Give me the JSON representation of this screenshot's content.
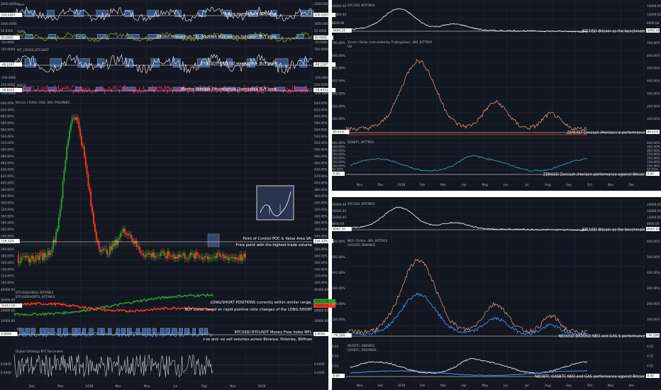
{
  "colors": {
    "bg": "#131722",
    "grid": "#2a2e39",
    "white": "#ffffff",
    "up": "#26a69a",
    "green": "#2ca02c",
    "red": "#ff3b1f",
    "blue": "#4f8fe0",
    "teal": "#3fa7b5",
    "pink": "#ff2a6d",
    "salmon": "#f0a080",
    "box": "#4a6a9a"
  },
  "left": {
    "panels": [
      {
        "id": "mom",
        "title": "Mom",
        "ticks": [
          "2000.0000",
          "1000.0000"
        ],
        "value": "100.0267",
        "annotation": "Positive momentum BUY zone"
      },
      {
        "id": "sqz",
        "title": "SQMI",
        "ticks": [
          "50.0000",
          "0.0000",
          "-50.0000"
        ],
        "value": "50.0000",
        "annotation": "Bitcoin momentum TSI -Squeeze momentum Indicator- BUY zone"
      },
      {
        "id": "wt",
        "title": "WT_CROSS_BTCUSDT",
        "ticks": [
          "100.0000",
          "0.0000",
          "-100.0000"
        ],
        "value": "-48.2247",
        "annotation": "BTCUSDT -BTCUSD wave cross- BUY zone"
      },
      {
        "id": "macd",
        "title": "MACD",
        "ticks": [
          "250.0000",
          "0.0000",
          "-250.0000"
        ],
        "value": "-18.6533",
        "annotation": "Moving Average Convergence Divergence BUY zone"
      }
    ],
    "main": {
      "title": "Bitcoin / Tether USD, 360, POLONIEX",
      "pct_ticks": [
        "640.00%",
        "620.00%",
        "600.00%",
        "580.00%",
        "560.00%",
        "540.00%",
        "520.00%",
        "500.00%",
        "480.00%",
        "460.00%",
        "440.00%",
        "420.00%",
        "400.00%",
        "380.00%",
        "360.00%",
        "340.00%",
        "320.00%",
        "300.00%",
        "280.00%",
        "260.00%",
        "240.00%",
        "220.00%",
        "200.00%",
        "180.00%",
        "160.00%",
        "140.00%",
        "120.00%",
        "100.00%"
      ],
      "price_tag": "126.32%",
      "annotations": [
        "Point of Control  POC & Value Area VA:",
        "Price point with the highest trade volume"
      ]
    },
    "longshort": {
      "titles": [
        "BTCUSDLONGS, BITFINEX",
        "BTCUSDSHORTS, BITFINEX"
      ],
      "ticks": [
        "40000.00",
        "30000.00",
        "20000.00",
        "10000.00"
      ],
      "tags": [
        "35411.00",
        "25966.00"
      ],
      "annotations": [
        "LONG/SHORT POSITIONS currently within similar range.",
        "BUY zones based on rapid positive ratio changes of the LONG:SHORT"
      ]
    },
    "mfi": {
      "title": "MFI",
      "value": "0.0000",
      "ticks": [
        "0.0000"
      ],
      "annotations": [
        "BTCUSD/ BTCUSDT Money Flow Index MFI:",
        "+ve and -ve sell volumes across Binance, Poloniex, Bitfinex"
      ]
    },
    "baro": {
      "title": "Digital-Ontology BTC Barometer",
      "ticks": [
        "0.6000",
        "0.4000"
      ]
    },
    "months": [
      "Sep",
      "Nov",
      "2018",
      "Mar",
      "May",
      "Jul",
      "Sep",
      "Nov",
      "2019"
    ]
  },
  "right_top": {
    "btc": {
      "title": "BTCUSD, BITFINEX",
      "ticks": [
        "16000.00",
        "12000.00",
        "8000.00",
        "4000.00"
      ],
      "tag": "5494.24",
      "annotation": "BTCUSD Bitcoin as the benchmark"
    },
    "zec": {
      "title": "Zcash / Dollar (calculated by TradingView), 360, BITTREX",
      "sub": "Vol",
      "ticks": [
        "700.00%",
        "600.00%",
        "500.00%",
        "400.00%",
        "300.00%",
        "200.00%",
        "100.00%",
        "0.00%"
      ],
      "tag": "89.61%",
      "annotation": "ZENUSD Zencash (Horizen) $ performance"
    },
    "zbtc": {
      "title": "ZENBTC, BITTREX",
      "ticks": [
        "400.00%",
        "350.00%",
        "300.00%",
        "250.00%",
        "200.00%",
        "150.00%",
        "100.00%",
        "50.00%",
        "0.00%"
      ],
      "tag": "0.00",
      "annotation": "ZENUSD Zencash (Horizen performance against Bitcoin"
    },
    "months": [
      "Nov",
      "Dec",
      "2018",
      "Feb",
      "Mar",
      "Apr",
      "May",
      "Jun",
      "Jul",
      "Aug",
      "Sep",
      "Oct",
      "Nov",
      "Dec"
    ]
  },
  "right_bottom": {
    "btc": {
      "title": "BTCUSD, BITFINEX",
      "ticks": [
        "20000.00",
        "16000.00",
        "12000.00",
        "8000.00",
        "4000.00"
      ],
      "tag": "6567.20",
      "annotation": "BTCUSD Bitcoin as the benchmark"
    },
    "neo": {
      "title": "NEO / Dollar, 480, BITTREX",
      "sub": "GASUSD, BINANCE",
      "ticks": [
        "600.00%",
        "500.00%",
        "400.00%",
        "300.00%",
        "200.00%",
        "100.00%",
        "0.00%"
      ],
      "tag": "-76.28%",
      "annotation": "NEOUSD GASUSD NEO and GAS $ performance"
    },
    "nbtc": {
      "title": "NEOBTC, BINANCE",
      "sub": "GASBTC, POLONIEX",
      "ticks": [
        "0.03",
        "0.02",
        "0.01",
        "0.00"
      ],
      "tag": "0.00",
      "annotation": "NEOBTC GASBTC NEO and GAS performance against Bitcoin"
    },
    "months": [
      "Nov",
      "Dec",
      "2018",
      "Feb",
      "Mar",
      "Apr",
      "May",
      "Jun",
      "Jul",
      "Aug",
      "Sep",
      "Oct",
      "Nov",
      "Dec"
    ]
  }
}
